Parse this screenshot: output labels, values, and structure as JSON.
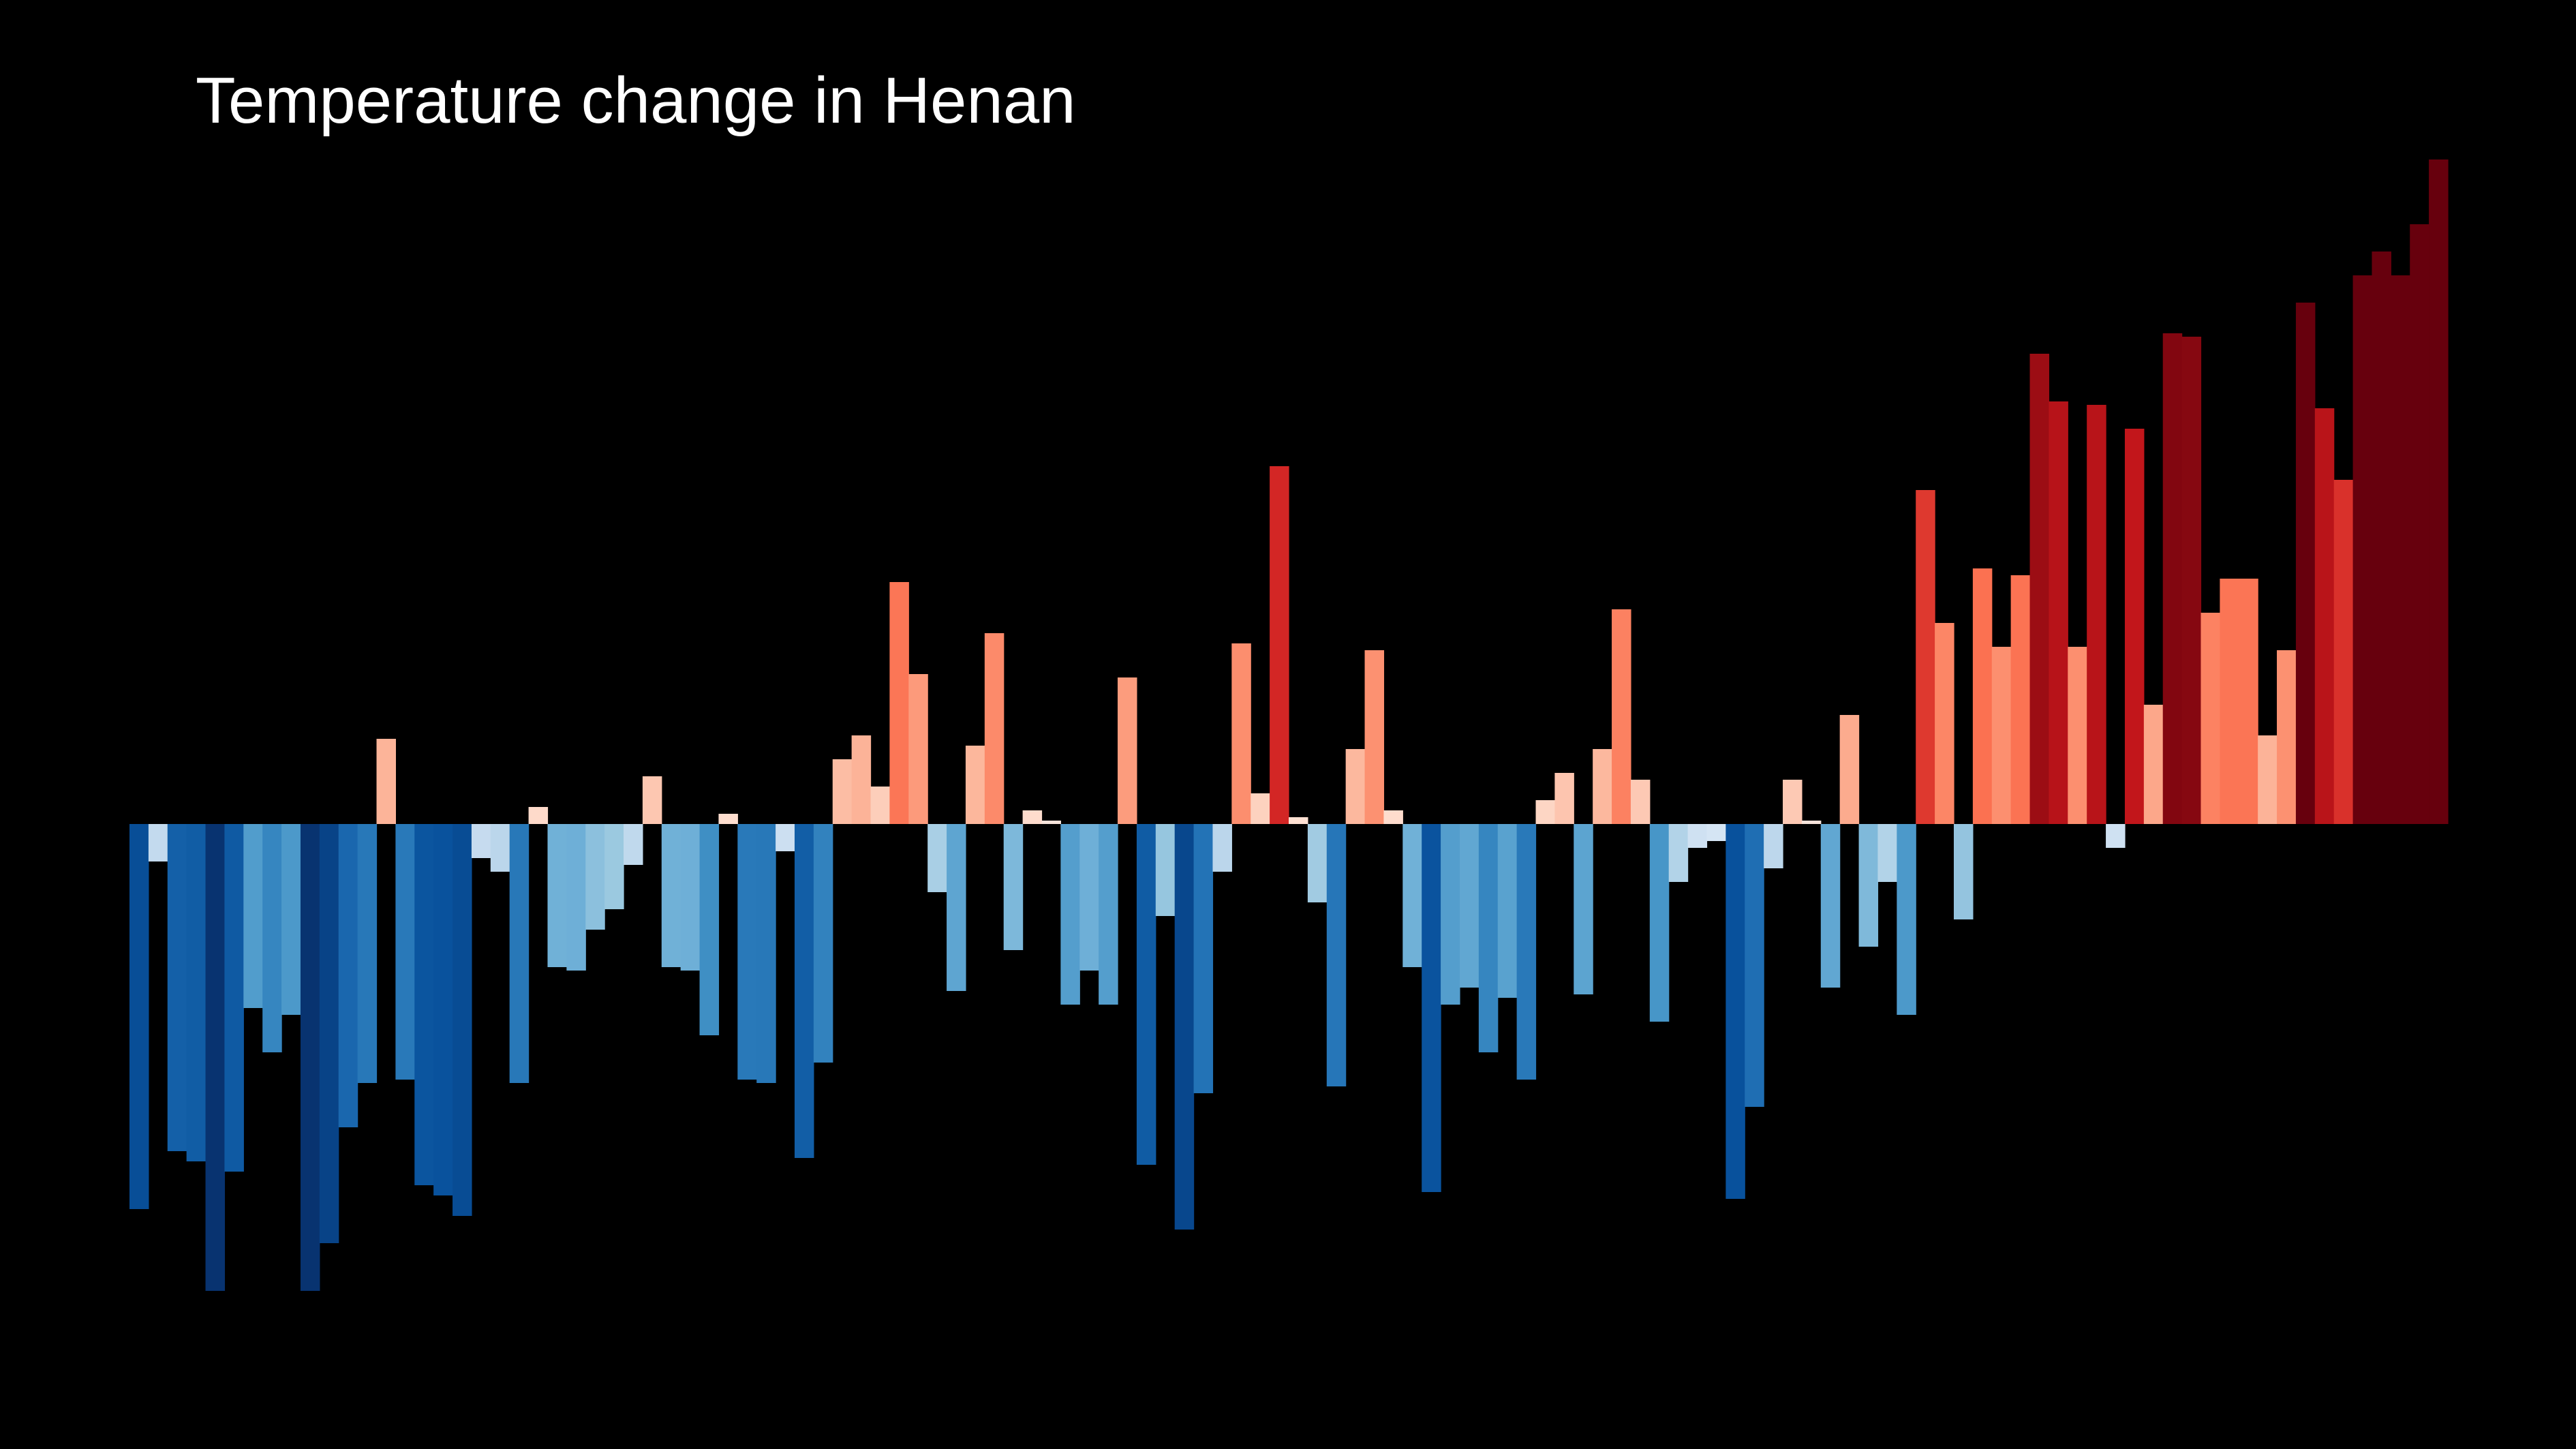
{
  "chart_data": {
    "type": "bar",
    "title": "Temperature change in Henan",
    "xlabel": "",
    "ylabel": "",
    "grid": false,
    "legend": "none",
    "background": "#000000",
    "ylim": [
      -0.685,
      0.975
    ],
    "values": [
      -0.565,
      -0.055,
      -0.48,
      -0.495,
      -0.685,
      -0.51,
      -0.27,
      -0.335,
      -0.28,
      -0.685,
      -0.615,
      -0.445,
      -0.38,
      0.125,
      -0.375,
      -0.53,
      -0.545,
      -0.575,
      -0.05,
      -0.07,
      -0.38,
      0.025,
      -0.21,
      -0.215,
      -0.155,
      -0.125,
      -0.06,
      0.07,
      -0.21,
      -0.215,
      -0.31,
      0.015,
      -0.375,
      -0.38,
      -0.04,
      -0.49,
      -0.35,
      0.095,
      0.13,
      0.055,
      0.355,
      0.22,
      -0.1,
      -0.245,
      0.115,
      0.28,
      -0.185,
      0.02,
      0.005,
      -0.265,
      -0.215,
      -0.265,
      0.215,
      -0.5,
      -0.135,
      -0.595,
      -0.395,
      -0.07,
      0.265,
      0.045,
      0.525,
      0.01,
      -0.115,
      -0.385,
      0.11,
      0.255,
      0.02,
      -0.21,
      -0.54,
      -0.265,
      -0.24,
      -0.335,
      -0.255,
      -0.375,
      0.035,
      0.075,
      -0.25,
      0.11,
      0.315,
      0.065,
      -0.29,
      -0.085,
      -0.035,
      -0.025,
      -0.55,
      -0.415,
      -0.065,
      0.065,
      0.005,
      -0.24,
      0.16,
      -0.18,
      -0.085,
      -0.28,
      0.49,
      0.295,
      -0.14,
      0.375,
      0.26,
      0.365,
      0.69,
      0.62,
      0.26,
      0.615,
      -0.035,
      0.58,
      0.175,
      0.72,
      0.715,
      0.31,
      0.36,
      0.36,
      0.13,
      0.255,
      0.765,
      0.61,
      0.505,
      0.805,
      0.84,
      0.805,
      0.88,
      0.975
    ],
    "colors": {
      "cold_deep": "#08306b",
      "cold": "#2171b5",
      "cold_light": "#9ecae1",
      "near_zero_cold": "#deebf7",
      "near_zero_warm": "#fee0d2",
      "warm_light": "#fc9272",
      "warm": "#ef3b2c",
      "warm_deep": "#67000d"
    }
  }
}
